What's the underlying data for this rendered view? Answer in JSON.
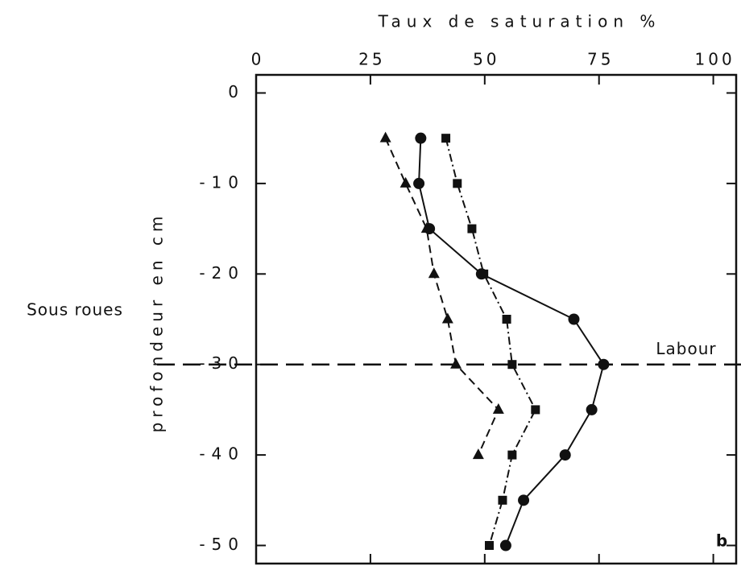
{
  "chart_data": {
    "type": "line",
    "title": "Taux de saturation %",
    "y_label": "profondeur en cm",
    "side_label": "Sous roues",
    "panel_label": "b",
    "reference_line": {
      "y": -30,
      "label": "Labour",
      "style": "dashed"
    },
    "y": [
      -5,
      -10,
      -15,
      -20,
      -25,
      -30,
      -35,
      -40,
      -45,
      -50
    ],
    "series": [
      {
        "marker": "circle",
        "dash": "solid",
        "color": "#111111",
        "values": [
          36,
          35.6,
          37.9,
          49.3,
          69.5,
          76,
          73.4,
          67.6,
          58.5,
          54.6
        ]
      },
      {
        "marker": "square",
        "dash": "dashdot",
        "color": "#111111",
        "values": [
          41.5,
          44,
          47.2,
          49.8,
          54.8,
          56,
          61.1,
          56,
          53.9,
          51
        ]
      },
      {
        "marker": "triangle",
        "dash": "dashed",
        "color": "#111111",
        "values": [
          28.3,
          32.7,
          37.3,
          38.9,
          41.9,
          43.7,
          53,
          48.6,
          null,
          null
        ]
      }
    ],
    "xlim": [
      0,
      105
    ],
    "xticks": [
      0,
      25,
      50,
      75,
      100
    ],
    "ylim": [
      -52,
      2
    ],
    "yticks": [
      0,
      -10,
      -20,
      -30,
      -40,
      -50
    ],
    "x_axis_position": "top",
    "grid": false
  }
}
